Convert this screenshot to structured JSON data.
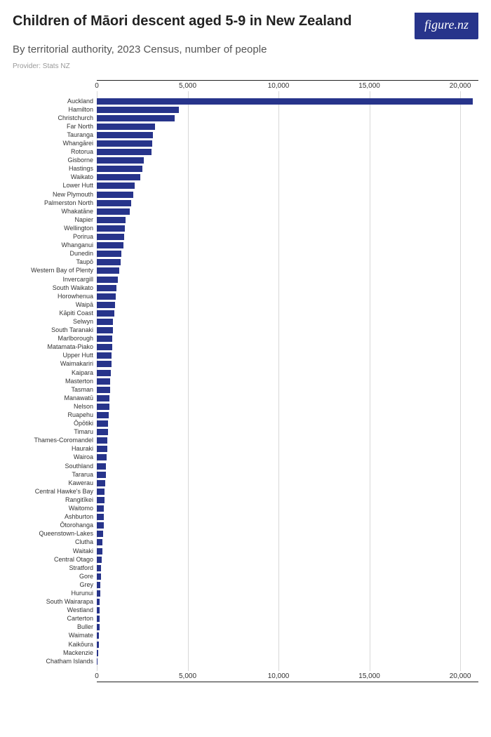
{
  "header": {
    "title": "Children of Māori descent aged 5-9 in New Zealand",
    "subtitle": "By territorial authority, 2023 Census, number of people",
    "provider": "Provider: Stats NZ",
    "logo_text": "figure.nz"
  },
  "chart": {
    "type": "bar",
    "orientation": "horizontal",
    "bar_color": "#27348b",
    "background_color": "#ffffff",
    "grid_color": "#d8d8d8",
    "axis_color": "#222222",
    "label_fontsize": 9,
    "tick_fontsize": 10,
    "xlim": [
      0,
      21000
    ],
    "xticks": [
      0,
      5000,
      10000,
      15000,
      20000
    ],
    "xtick_labels": [
      "0",
      "5,000",
      "10,000",
      "15,000",
      "20,000"
    ],
    "categories": [
      "Auckland",
      "Hamilton",
      "Christchurch",
      "Far North",
      "Tauranga",
      "Whangārei",
      "Rotorua",
      "Gisborne",
      "Hastings",
      "Waikato",
      "Lower Hutt",
      "New Plymouth",
      "Palmerston North",
      "Whakatāne",
      "Napier",
      "Wellington",
      "Porirua",
      "Whanganui",
      "Dunedin",
      "Taupō",
      "Western Bay of Plenty",
      "Invercargill",
      "South Waikato",
      "Horowhenua",
      "Waipā",
      "Kāpiti Coast",
      "Selwyn",
      "South Taranaki",
      "Marlborough",
      "Matamata-Piako",
      "Upper Hutt",
      "Waimakariri",
      "Kaipara",
      "Masterton",
      "Tasman",
      "Manawatū",
      "Nelson",
      "Ruapehu",
      "Ōpōtiki",
      "Timaru",
      "Thames-Coromandel",
      "Hauraki",
      "Wairoa",
      "Southland",
      "Tararua",
      "Kawerau",
      "Central Hawke's Bay",
      "Rangitīkei",
      "Waitomo",
      "Ashburton",
      "Ōtorohanga",
      "Queenstown-Lakes",
      "Clutha",
      "Waitaki",
      "Central Otago",
      "Stratford",
      "Gore",
      "Grey",
      "Hurunui",
      "South Wairarapa",
      "Westland",
      "Carterton",
      "Buller",
      "Waimate",
      "Kaikōura",
      "Mackenzie",
      "Chatham Islands"
    ],
    "values": [
      20700,
      4500,
      4300,
      3200,
      3100,
      3050,
      3000,
      2600,
      2500,
      2400,
      2100,
      2000,
      1900,
      1800,
      1600,
      1550,
      1500,
      1450,
      1350,
      1300,
      1250,
      1150,
      1100,
      1050,
      1000,
      950,
      900,
      880,
      850,
      830,
      820,
      800,
      770,
      740,
      720,
      700,
      680,
      650,
      630,
      610,
      580,
      560,
      540,
      520,
      500,
      460,
      440,
      420,
      400,
      390,
      370,
      350,
      310,
      290,
      270,
      250,
      230,
      210,
      180,
      170,
      160,
      150,
      140,
      120,
      110,
      70,
      50
    ]
  }
}
